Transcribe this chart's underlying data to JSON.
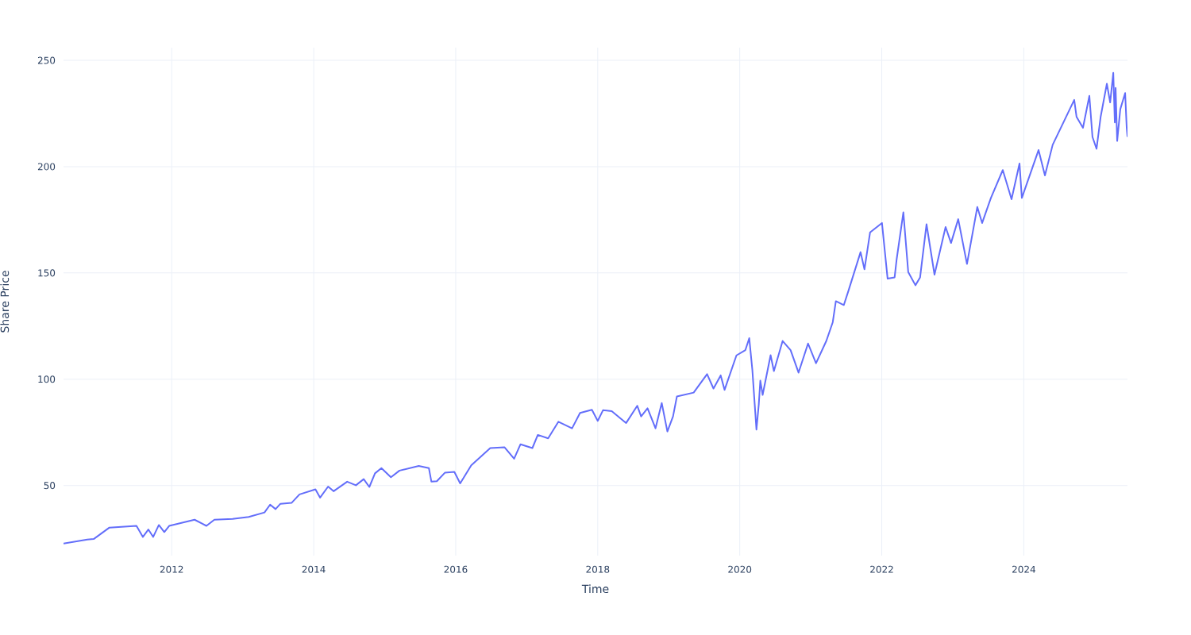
{
  "chart_data": {
    "type": "line",
    "xlabel": "Time",
    "ylabel": "Share Price",
    "color": "#636efa",
    "grid": true,
    "marker": "none",
    "line_style": "solid",
    "xlim": [
      "2010-06-24",
      "2025-06-18"
    ],
    "ylim": [
      17,
      256
    ],
    "xticks": [
      "2012",
      "2014",
      "2016",
      "2018",
      "2020",
      "2022",
      "2024"
    ],
    "yticks": [
      50,
      100,
      150,
      200,
      250
    ],
    "x": [
      "2010-06-24",
      "2010-10-24",
      "2010-11-26",
      "2011-02-15",
      "2011-07-04",
      "2011-08-06",
      "2011-09-03",
      "2011-09-28",
      "2011-10-27",
      "2011-11-24",
      "2011-12-19",
      "2012-04-28",
      "2012-06-28",
      "2012-08-08",
      "2012-11-10",
      "2013-02-01",
      "2013-04-23",
      "2013-05-22",
      "2013-06-19",
      "2013-07-14",
      "2013-09-09",
      "2013-10-20",
      "2014-01-10",
      "2014-02-03",
      "2014-03-16",
      "2014-04-13",
      "2014-06-22",
      "2014-08-06",
      "2014-09-15",
      "2014-10-14",
      "2014-11-12",
      "2014-12-15",
      "2015-02-02",
      "2015-03-18",
      "2015-06-25",
      "2015-08-16",
      "2015-08-29",
      "2015-09-26",
      "2015-11-06",
      "2015-12-25",
      "2016-01-24",
      "2016-03-21",
      "2016-06-27",
      "2016-09-08",
      "2016-10-28",
      "2016-11-30",
      "2017-01-30",
      "2017-02-27",
      "2017-04-21",
      "2017-06-13",
      "2017-08-22",
      "2017-10-02",
      "2017-12-02",
      "2018-01-01",
      "2018-01-28",
      "2018-03-14",
      "2018-05-27",
      "2018-07-23",
      "2018-08-12",
      "2018-09-14",
      "2018-10-25",
      "2018-11-26",
      "2018-12-25",
      "2019-01-23",
      "2019-02-12",
      "2019-05-09",
      "2019-07-17",
      "2019-08-19",
      "2019-09-25",
      "2019-10-15",
      "2019-12-15",
      "2020-01-30",
      "2020-02-19",
      "2020-03-06",
      "2020-03-27",
      "2020-04-08",
      "2020-04-16",
      "2020-04-28",
      "2020-06-08",
      "2020-06-25",
      "2020-08-09",
      "2020-09-19",
      "2020-10-30",
      "2020-12-18",
      "2021-01-28",
      "2021-03-22",
      "2021-04-24",
      "2021-05-10",
      "2021-06-20",
      "2021-07-14",
      "2021-09-14",
      "2021-10-04",
      "2021-11-02",
      "2022-01-02",
      "2022-01-31",
      "2022-03-08",
      "2022-03-18",
      "2022-04-22",
      "2022-05-17",
      "2022-06-23",
      "2022-07-17",
      "2022-08-19",
      "2022-09-29",
      "2022-11-25",
      "2022-12-23",
      "2023-01-29",
      "2023-03-15",
      "2023-05-07",
      "2023-06-01",
      "2023-07-16",
      "2023-09-15",
      "2023-10-30",
      "2023-12-10",
      "2023-12-22",
      "2024-03-17",
      "2024-04-19",
      "2024-05-29",
      "2024-09-17",
      "2024-09-29",
      "2024-11-01",
      "2024-12-04",
      "2024-12-20",
      "2025-01-10",
      "2025-01-31",
      "2025-03-04",
      "2025-03-21",
      "2025-04-06",
      "2025-04-14",
      "2025-04-18",
      "2025-04-26",
      "2025-05-12",
      "2025-06-06",
      "2025-06-14",
      "2025-06-18"
    ],
    "values": [
      22.7,
      24.6,
      24.8,
      30.2,
      31.0,
      25.8,
      29.3,
      25.8,
      31.4,
      28.1,
      31.0,
      33.9,
      31.0,
      33.9,
      34.3,
      35.2,
      37.3,
      41.0,
      38.9,
      41.4,
      41.8,
      45.8,
      48.2,
      44.3,
      49.5,
      47.3,
      51.8,
      50.1,
      53.0,
      49.3,
      55.7,
      58.2,
      53.9,
      57.0,
      59.2,
      58.2,
      51.8,
      52.0,
      56.0,
      56.4,
      51.0,
      59.5,
      67.6,
      68.0,
      62.6,
      69.4,
      67.6,
      73.8,
      72.2,
      80.0,
      76.9,
      84.1,
      85.6,
      80.4,
      85.4,
      85.0,
      79.4,
      87.5,
      82.5,
      86.3,
      76.9,
      88.8,
      75.4,
      82.5,
      91.9,
      93.7,
      102.4,
      95.6,
      101.8,
      95.0,
      111.2,
      113.7,
      119.3,
      104.3,
      76.3,
      88.1,
      99.3,
      92.6,
      111.3,
      103.8,
      118.0,
      113.7,
      103.1,
      116.8,
      107.5,
      118.0,
      126.8,
      136.7,
      134.9,
      141.7,
      159.8,
      151.7,
      169.1,
      173.5,
      147.3,
      147.9,
      156.1,
      178.5,
      150.4,
      144.2,
      147.9,
      172.9,
      149.2,
      171.6,
      164.1,
      175.3,
      154.2,
      181.0,
      173.5,
      185.3,
      198.4,
      184.7,
      201.5,
      185.3,
      207.8,
      195.9,
      210.3,
      231.4,
      223.4,
      218.3,
      233.3,
      214.0,
      208.4,
      223.4,
      239.0,
      230.2,
      244.1,
      220.8,
      237.0,
      212.1,
      227.0,
      234.6,
      218.3,
      214.0
    ]
  }
}
